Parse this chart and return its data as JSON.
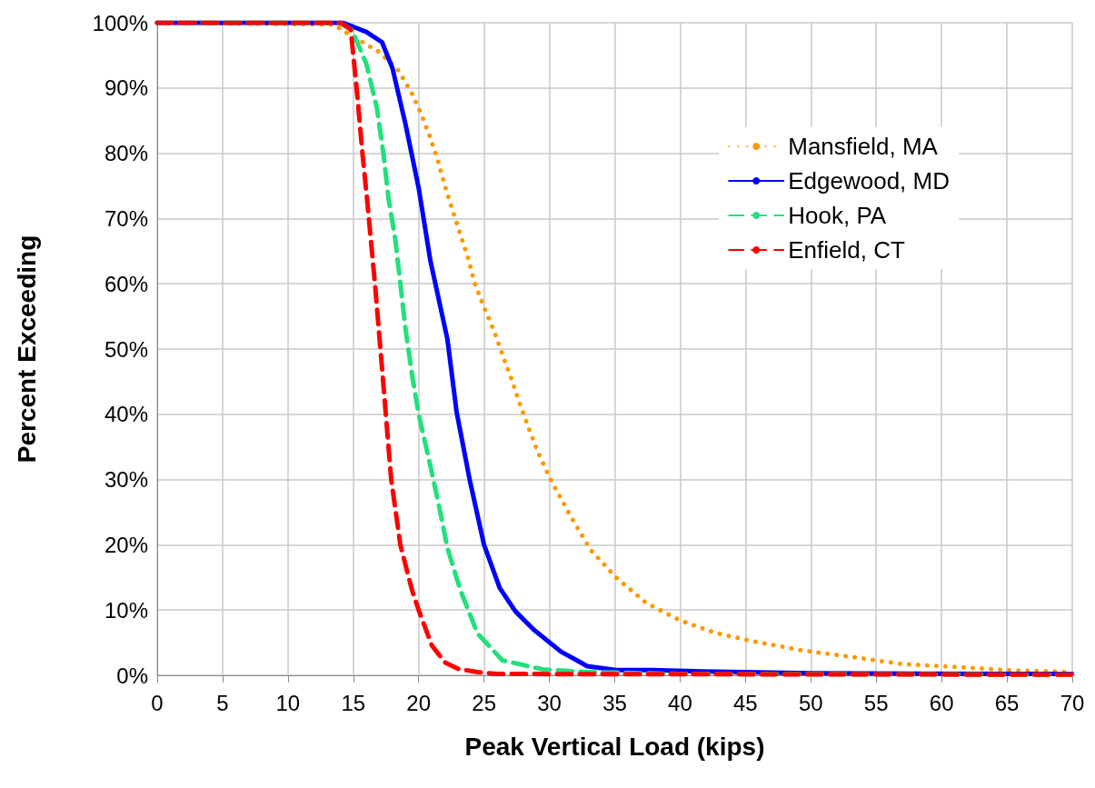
{
  "chart_data": {
    "type": "line",
    "xlabel": "Peak Vertical Load (kips)",
    "ylabel": "Percent Exceeding",
    "xlim": [
      0,
      70
    ],
    "xticks": [
      0,
      5,
      10,
      15,
      20,
      25,
      30,
      35,
      40,
      45,
      50,
      55,
      60,
      65,
      70
    ],
    "ylim": [
      0,
      100
    ],
    "yticks": [
      {
        "value": 0,
        "label": "0%"
      },
      {
        "value": 10,
        "label": "10%"
      },
      {
        "value": 20,
        "label": "20%"
      },
      {
        "value": 30,
        "label": "30%"
      },
      {
        "value": 40,
        "label": "40%"
      },
      {
        "value": 50,
        "label": "50%"
      },
      {
        "value": 60,
        "label": "60%"
      },
      {
        "value": 70,
        "label": "70%"
      },
      {
        "value": 80,
        "label": "80%"
      },
      {
        "value": 90,
        "label": "90%"
      },
      {
        "value": 100,
        "label": "100%"
      }
    ],
    "grid": true,
    "legend": "top right",
    "marker": "none",
    "series": [
      {
        "name": "Mansfield, MA",
        "color": "#ff9900",
        "line_style": "dotted",
        "x": [
          0,
          13.5,
          15.2,
          17,
          18.4,
          19.4,
          20.2,
          20.9,
          21.5,
          22,
          22.6,
          23.2,
          23.8,
          24.3,
          25,
          25.8,
          26.4,
          27.1,
          27.7,
          28.4,
          29.1,
          29.9,
          30.3,
          31.7,
          33.2,
          35.2,
          37.4,
          40,
          42.7,
          45.6,
          49.4,
          53.2,
          57.1,
          61,
          64.9,
          70
        ],
        "values": [
          100,
          99.7,
          97.6,
          95.5,
          92.8,
          89.5,
          86,
          82.3,
          78.7,
          75,
          71.2,
          67.5,
          63.8,
          60,
          56.4,
          52.6,
          49.2,
          45.4,
          41.8,
          38,
          34.3,
          30.8,
          29.2,
          24.1,
          19.1,
          14.8,
          11.1,
          8.4,
          6.5,
          5.2,
          3.8,
          2.8,
          1.7,
          1.3,
          0.8,
          0.5
        ]
      },
      {
        "name": "Edgewood, MD",
        "color": "#0000ff",
        "line_style": "solid",
        "x": [
          0,
          14.2,
          16,
          17.2,
          18,
          19,
          20,
          20.9,
          22.2,
          22.9,
          23.9,
          25,
          26.2,
          27.4,
          28.8,
          30.9,
          32,
          32.9,
          35.1,
          37.9,
          41.8,
          50,
          70
        ],
        "values": [
          100,
          100,
          98.6,
          97,
          93,
          84.4,
          74.7,
          63.5,
          51.5,
          40.4,
          30,
          20,
          13.4,
          9.8,
          7,
          3.6,
          2.4,
          1.4,
          0.8,
          0.8,
          0.6,
          0.3,
          0.2
        ]
      },
      {
        "name": "Hook, PA",
        "color": "#22e07a",
        "line_style": "dashed",
        "x": [
          0,
          14,
          14.9,
          16,
          16.8,
          17.3,
          17.7,
          18.2,
          18.6,
          19,
          19.5,
          20,
          20.8,
          21.5,
          22.2,
          23.2,
          24.5,
          26.4,
          29.5,
          33,
          40,
          70
        ],
        "values": [
          100,
          100,
          98.9,
          93.7,
          87,
          80,
          73,
          67,
          60,
          53,
          46,
          40,
          33,
          26.5,
          19.5,
          13,
          6.4,
          2.3,
          0.9,
          0.5,
          0.2,
          0.1
        ]
      },
      {
        "name": "Enfield, CT",
        "color": "#ff0000",
        "line_style": "dashed",
        "x": [
          0,
          14,
          14.8,
          15.3,
          15.7,
          16.1,
          16.7,
          17.2,
          17.9,
          18.6,
          19.5,
          20,
          21,
          22,
          23,
          24.5,
          26,
          70
        ],
        "values": [
          100,
          100,
          99,
          89,
          80,
          72,
          59,
          47,
          30,
          20,
          13,
          10,
          4.6,
          2,
          1,
          0.5,
          0.2,
          0.1
        ]
      }
    ]
  }
}
